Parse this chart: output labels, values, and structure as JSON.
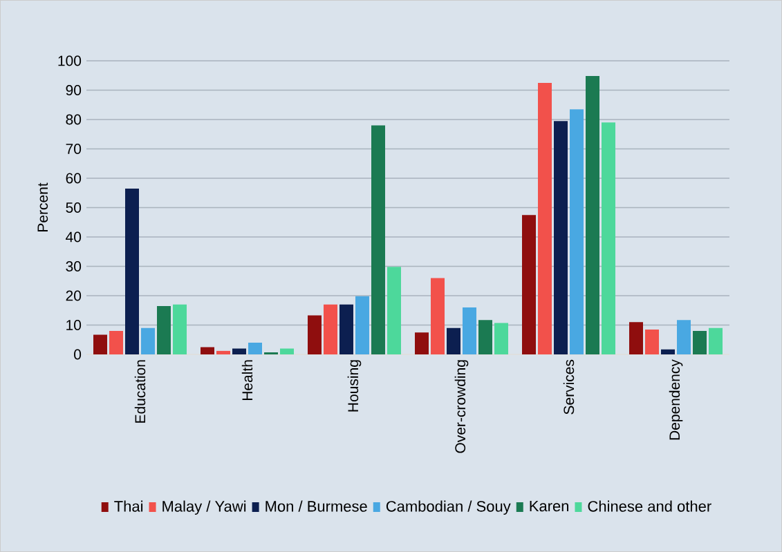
{
  "chart_data": {
    "type": "bar",
    "ylabel": "Percent",
    "categories": [
      "Education",
      "Health",
      "Housing",
      "Over-crowding",
      "Services",
      "Dependency"
    ],
    "series": [
      {
        "name": "Thai",
        "color": "#8f0e0e",
        "values": [
          6.7,
          2.5,
          13.3,
          7.5,
          47.5,
          11
        ]
      },
      {
        "name": "Malay / Yawi",
        "color": "#f2514b",
        "values": [
          8,
          1.2,
          17,
          26,
          92.5,
          8.5
        ]
      },
      {
        "name": "Mon / Burmese",
        "color": "#0c1f50",
        "values": [
          56.5,
          2,
          17,
          9,
          79.5,
          1.7
        ]
      },
      {
        "name": "Cambodian / Souy",
        "color": "#49a8e2",
        "values": [
          9,
          4,
          19.8,
          16,
          83.5,
          11.7
        ]
      },
      {
        "name": "Karen",
        "color": "#1b7a52",
        "values": [
          16.5,
          0.7,
          78,
          11.7,
          94.8,
          8
        ]
      },
      {
        "name": "Chinese and other",
        "color": "#4dd89b",
        "values": [
          17,
          2,
          29.8,
          10.7,
          79,
          9
        ]
      }
    ],
    "ylim": [
      0,
      100
    ],
    "yticks": [
      0,
      10,
      20,
      30,
      40,
      50,
      60,
      70,
      80,
      90,
      100
    ],
    "grid": "y",
    "legend": "bottom"
  }
}
